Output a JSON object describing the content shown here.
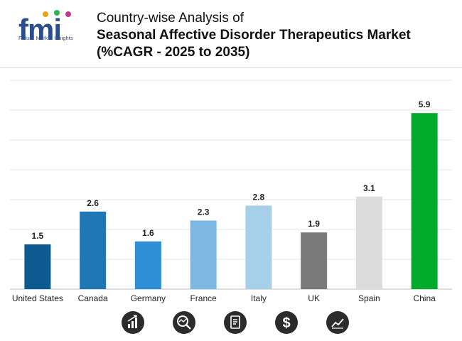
{
  "header": {
    "title_line1": "Country-wise Analysis of",
    "title_line2": "Seasonal Affective Disorder Therapeutics Market",
    "title_line3": "(%CAGR - 2025 to 2035)",
    "logo_text": "fmi",
    "logo_subtext": "Future Market Insights"
  },
  "chart_data": {
    "type": "bar",
    "categories": [
      "United States",
      "Canada",
      "Germany",
      "France",
      "Italy",
      "UK",
      "Spain",
      "China"
    ],
    "values": [
      1.5,
      2.6,
      1.6,
      2.3,
      2.8,
      1.9,
      3.1,
      5.9
    ],
    "colors": [
      "#0d5a91",
      "#1f77b4",
      "#2e8fd6",
      "#7cb8e2",
      "#a6cfe9",
      "#7a7a7a",
      "#dcdcdc",
      "#00aa2a"
    ],
    "ylim": [
      0,
      7
    ],
    "grid": true,
    "title": "Country-wise Analysis of Seasonal Affective Disorder Therapeutics Market (%CAGR - 2025 to 2035)",
    "xlabel": "",
    "ylabel": ""
  },
  "footer": {
    "icons": [
      "bar-growth-icon",
      "magnifier-chart-icon",
      "document-icon",
      "dollar-icon",
      "line-trend-icon"
    ]
  }
}
